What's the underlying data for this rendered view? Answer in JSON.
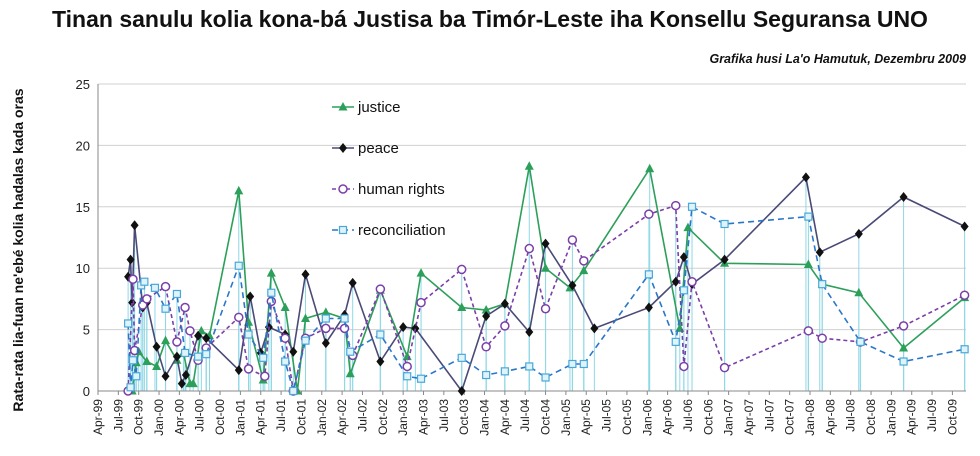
{
  "title": "Tinan sanulu kolia kona-bá Justisa ba Timór-Leste iha Konsellu Seguransa UNO",
  "subtitle": "Grafika husi La'o Hamutuk, Dezembru 2009",
  "chart_data": {
    "type": "line",
    "ylabel": "Rata-rata lia-fuan ne'ebé kolia hadalas kada oras",
    "ylim": [
      0,
      25
    ],
    "yticks": [
      0,
      5,
      10,
      15,
      20,
      25
    ],
    "xlim": [
      1999.25,
      2009.917
    ],
    "xtick_labels": [
      "Apr-99",
      "Jul-99",
      "Oct-99",
      "Jan-00",
      "Apr-00",
      "Jul-00",
      "Oct-00",
      "Jan-01",
      "Apr-01",
      "Jul-01",
      "Oct-01",
      "Jan-02",
      "Apr-02",
      "Jul-02",
      "Oct-02",
      "Jan-03",
      "Apr-03",
      "Jul-03",
      "Oct-03",
      "Jan-04",
      "Apr-04",
      "Jul-04",
      "Oct-04",
      "Jan-05",
      "Apr-05",
      "Jul-05",
      "Oct-05",
      "Jan-06",
      "Apr-06",
      "Jul-06",
      "Oct-06",
      "Jan-07",
      "Apr-07",
      "Jul-07",
      "Oct-07",
      "Jan-08",
      "Apr-08",
      "Jul-08",
      "Oct-08",
      "Jan-09",
      "Apr-09",
      "Jul-09",
      "Oct-09"
    ],
    "legend_position": "top-left (inside plot)",
    "droplines": true,
    "series": [
      {
        "name": "justice",
        "color": "#2ca05a",
        "dash": "none",
        "marker": "triangle",
        "points": [
          [
            1999.67,
            0
          ],
          [
            1999.72,
            2.3
          ],
          [
            1999.75,
            3.2
          ],
          [
            1999.85,
            2.4
          ],
          [
            1999.97,
            2
          ],
          [
            2000.08,
            4.1
          ],
          [
            2000.22,
            2.5
          ],
          [
            2000.3,
            3.1
          ],
          [
            2000.38,
            0.6
          ],
          [
            2000.42,
            0.6
          ],
          [
            2000.52,
            4.9
          ],
          [
            2000.62,
            4.5
          ],
          [
            2000.98,
            16.3
          ],
          [
            2001.1,
            5.6
          ],
          [
            2001.28,
            0.9
          ],
          [
            2001.38,
            9.6
          ],
          [
            2001.55,
            6.8
          ],
          [
            2001.7,
            0
          ],
          [
            2001.8,
            5.9
          ],
          [
            2002.05,
            6.4
          ],
          [
            2002.28,
            5.9
          ],
          [
            2002.35,
            1.4
          ],
          [
            2002.72,
            8.2
          ],
          [
            2003.05,
            2.8
          ],
          [
            2003.22,
            9.6
          ],
          [
            2003.72,
            6.8
          ],
          [
            2004.02,
            6.6
          ],
          [
            2004.25,
            7.1
          ],
          [
            2004.55,
            18.3
          ],
          [
            2004.75,
            10
          ],
          [
            2005.05,
            8.4
          ],
          [
            2005.22,
            9.8
          ],
          [
            2006.03,
            18.1
          ],
          [
            2006.4,
            5.1
          ],
          [
            2006.5,
            13.3
          ],
          [
            2006.95,
            10.4
          ],
          [
            2007.98,
            10.3
          ],
          [
            2008.15,
            8.7
          ],
          [
            2008.6,
            8
          ],
          [
            2009.15,
            3.5
          ],
          [
            2009.9,
            7.6
          ]
        ]
      },
      {
        "name": "peace",
        "color": "#4a4a78",
        "dash": "none",
        "marker": "diamond",
        "points": [
          [
            1999.62,
            9.3
          ],
          [
            1999.65,
            10.7
          ],
          [
            1999.67,
            7.2
          ],
          [
            1999.7,
            13.5
          ],
          [
            1999.8,
            6.8
          ],
          [
            1999.85,
            7.2
          ],
          [
            1999.97,
            3.6
          ],
          [
            2000.08,
            1.2
          ],
          [
            2000.22,
            2.8
          ],
          [
            2000.28,
            0.6
          ],
          [
            2000.33,
            1.3
          ],
          [
            2000.48,
            4.5
          ],
          [
            2000.58,
            4.3
          ],
          [
            2000.98,
            1.7
          ],
          [
            2001.12,
            7.7
          ],
          [
            2001.25,
            3.1
          ],
          [
            2001.35,
            5.2
          ],
          [
            2001.55,
            4.6
          ],
          [
            2001.65,
            3.2
          ],
          [
            2001.8,
            9.5
          ],
          [
            2002.05,
            3.9
          ],
          [
            2002.28,
            6.2
          ],
          [
            2002.38,
            8.8
          ],
          [
            2002.72,
            2.4
          ],
          [
            2003.0,
            5.2
          ],
          [
            2003.15,
            5.1
          ],
          [
            2003.72,
            0
          ],
          [
            2004.02,
            6.1
          ],
          [
            2004.25,
            7.1
          ],
          [
            2004.55,
            4.8
          ],
          [
            2004.75,
            12
          ],
          [
            2005.08,
            8.6
          ],
          [
            2005.35,
            5.1
          ],
          [
            2006.02,
            6.8
          ],
          [
            2006.35,
            8.9
          ],
          [
            2006.45,
            10.9
          ],
          [
            2006.55,
            8.7
          ],
          [
            2006.95,
            10.7
          ],
          [
            2007.95,
            17.4
          ],
          [
            2008.12,
            11.3
          ],
          [
            2008.6,
            12.8
          ],
          [
            2009.15,
            15.8
          ],
          [
            2009.9,
            13.4
          ]
        ]
      },
      {
        "name": "human rights",
        "color": "#7b3fa8",
        "dash": "4,3",
        "marker": "circle",
        "points": [
          [
            1999.62,
            0
          ],
          [
            1999.68,
            9.1
          ],
          [
            1999.7,
            3.3
          ],
          [
            1999.8,
            7
          ],
          [
            1999.85,
            7.5
          ],
          [
            2000.08,
            8.5
          ],
          [
            2000.22,
            4
          ],
          [
            2000.32,
            6.8
          ],
          [
            2000.38,
            4.9
          ],
          [
            2000.48,
            2.5
          ],
          [
            2000.58,
            3.5
          ],
          [
            2000.98,
            6
          ],
          [
            2001.1,
            1.8
          ],
          [
            2001.3,
            1.2
          ],
          [
            2001.38,
            7.3
          ],
          [
            2001.55,
            4.3
          ],
          [
            2001.65,
            0
          ],
          [
            2001.8,
            4.3
          ],
          [
            2002.05,
            5.1
          ],
          [
            2002.28,
            5.1
          ],
          [
            2002.38,
            2.9
          ],
          [
            2002.72,
            8.3
          ],
          [
            2003.05,
            2
          ],
          [
            2003.22,
            7.2
          ],
          [
            2003.72,
            9.9
          ],
          [
            2004.02,
            3.6
          ],
          [
            2004.25,
            5.3
          ],
          [
            2004.55,
            11.6
          ],
          [
            2004.75,
            6.7
          ],
          [
            2005.08,
            12.3
          ],
          [
            2005.22,
            10.6
          ],
          [
            2006.02,
            14.4
          ],
          [
            2006.35,
            15.1
          ],
          [
            2006.45,
            2
          ],
          [
            2006.55,
            8.9
          ],
          [
            2006.95,
            1.9
          ],
          [
            2007.98,
            4.9
          ],
          [
            2008.15,
            4.3
          ],
          [
            2008.62,
            4
          ],
          [
            2009.15,
            5.3
          ],
          [
            2009.9,
            7.8
          ]
        ]
      },
      {
        "name": "reconciliation",
        "color": "#2a77c9",
        "dash": "6,4",
        "marker": "square",
        "points": [
          [
            1999.62,
            5.5
          ],
          [
            1999.65,
            0.3
          ],
          [
            1999.68,
            2.5
          ],
          [
            1999.72,
            1.2
          ],
          [
            1999.78,
            8.6
          ],
          [
            1999.82,
            8.9
          ],
          [
            1999.95,
            8.4
          ],
          [
            2000.08,
            6.7
          ],
          [
            2000.22,
            7.9
          ],
          [
            2000.32,
            3.1
          ],
          [
            2000.48,
            2.8
          ],
          [
            2000.58,
            3
          ],
          [
            2000.98,
            10.2
          ],
          [
            2001.1,
            4.6
          ],
          [
            2001.28,
            2.7
          ],
          [
            2001.38,
            8
          ],
          [
            2001.55,
            2.4
          ],
          [
            2001.65,
            0
          ],
          [
            2001.8,
            4.1
          ],
          [
            2002.05,
            5.9
          ],
          [
            2002.28,
            5.9
          ],
          [
            2002.35,
            3.2
          ],
          [
            2002.72,
            4.6
          ],
          [
            2003.05,
            1.2
          ],
          [
            2003.22,
            1
          ],
          [
            2003.72,
            2.7
          ],
          [
            2004.02,
            1.3
          ],
          [
            2004.25,
            1.6
          ],
          [
            2004.55,
            2
          ],
          [
            2004.75,
            1.1
          ],
          [
            2005.08,
            2.2
          ],
          [
            2005.22,
            2.2
          ],
          [
            2006.02,
            9.5
          ],
          [
            2006.35,
            4
          ],
          [
            2006.45,
            8.2
          ],
          [
            2006.55,
            15
          ],
          [
            2006.95,
            13.6
          ],
          [
            2007.98,
            14.2
          ],
          [
            2008.15,
            8.7
          ],
          [
            2008.62,
            4
          ],
          [
            2009.15,
            2.4
          ],
          [
            2009.9,
            3.4
          ]
        ]
      }
    ]
  }
}
